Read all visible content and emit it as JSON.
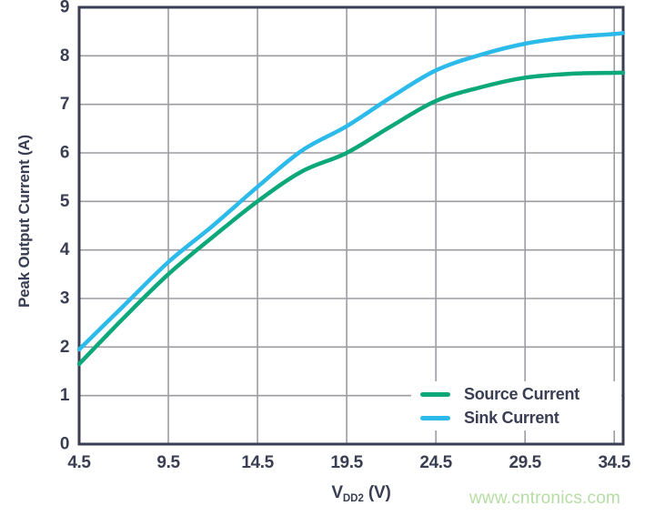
{
  "watermark": {
    "text": "www.cntronics.com",
    "color": "#b5dda4"
  },
  "colors": {
    "axis": "#3a3e52",
    "grid": "#9c9ca3",
    "background": "#ffffff",
    "source_series": "#0ca87a",
    "sink_series": "#2bbae9"
  },
  "chart_data": {
    "type": "line",
    "title": "",
    "xlabel": "VDD2 (V)",
    "xlabel_parts": {
      "main": "V",
      "sub": "DD2",
      "unit": " (V)"
    },
    "ylabel": "Peak Output Current (A)",
    "xlim": [
      4.5,
      35
    ],
    "ylim": [
      0,
      9
    ],
    "x_ticks": [
      4.5,
      9.5,
      14.5,
      19.5,
      24.5,
      29.5,
      34.5
    ],
    "y_ticks": [
      0,
      1,
      2,
      3,
      4,
      5,
      6,
      7,
      8,
      9
    ],
    "grid": true,
    "legend_position": "inside-bottom-right",
    "x": [
      4.5,
      7,
      9.5,
      12,
      14.5,
      17,
      19.5,
      22,
      24.5,
      27,
      29.5,
      32,
      34.5,
      35
    ],
    "series": [
      {
        "name": "Source Current",
        "color": "#0ca87a",
        "values": [
          1.65,
          2.6,
          3.5,
          4.27,
          5.0,
          5.62,
          6.0,
          6.55,
          7.07,
          7.35,
          7.55,
          7.63,
          7.65,
          7.65
        ]
      },
      {
        "name": "Sink Current",
        "color": "#2bbae9",
        "values": [
          1.95,
          2.85,
          3.75,
          4.5,
          5.3,
          6.05,
          6.55,
          7.15,
          7.7,
          8.02,
          8.25,
          8.38,
          8.45,
          8.47
        ]
      }
    ]
  }
}
